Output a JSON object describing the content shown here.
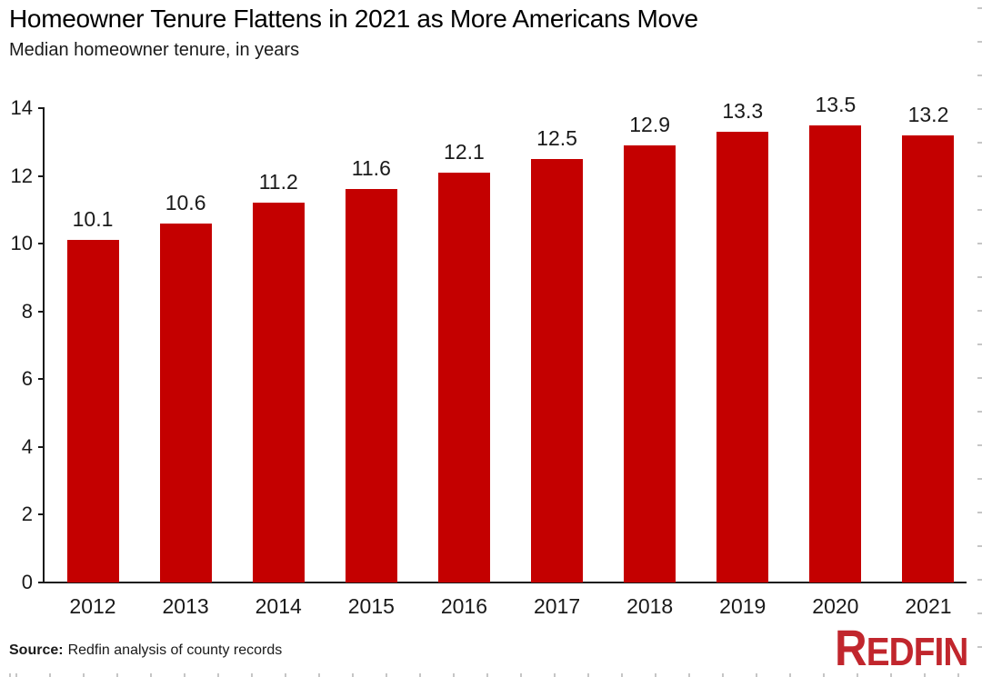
{
  "chart_data": {
    "type": "bar",
    "title": "Homeowner Tenure Flattens in 2021 as More Americans Move",
    "subtitle": "Median homeowner tenure, in years",
    "categories": [
      "2012",
      "2013",
      "2014",
      "2015",
      "2016",
      "2017",
      "2018",
      "2019",
      "2020",
      "2021"
    ],
    "values": [
      10.1,
      10.6,
      11.2,
      11.6,
      12.1,
      12.5,
      12.9,
      13.3,
      13.5,
      13.2
    ],
    "value_labels": [
      "10.1",
      "10.6",
      "11.2",
      "11.6",
      "12.1",
      "12.5",
      "12.9",
      "13.3",
      "13.5",
      "13.2"
    ],
    "xlabel": "",
    "ylabel": "",
    "ylim": [
      0,
      14
    ],
    "yticks": [
      0,
      2,
      4,
      6,
      8,
      10,
      12,
      14
    ],
    "grid": false,
    "legend": "none",
    "bar_color": "#c40000",
    "axis_color": "#1a1a1a",
    "text_color": "#1a1a1a"
  },
  "footer": {
    "source_label": "Source:",
    "source_text": "Redfin analysis of county records",
    "logo_first_letter": "R",
    "logo_rest": "EDFIN",
    "logo_color": "#c1262d"
  }
}
